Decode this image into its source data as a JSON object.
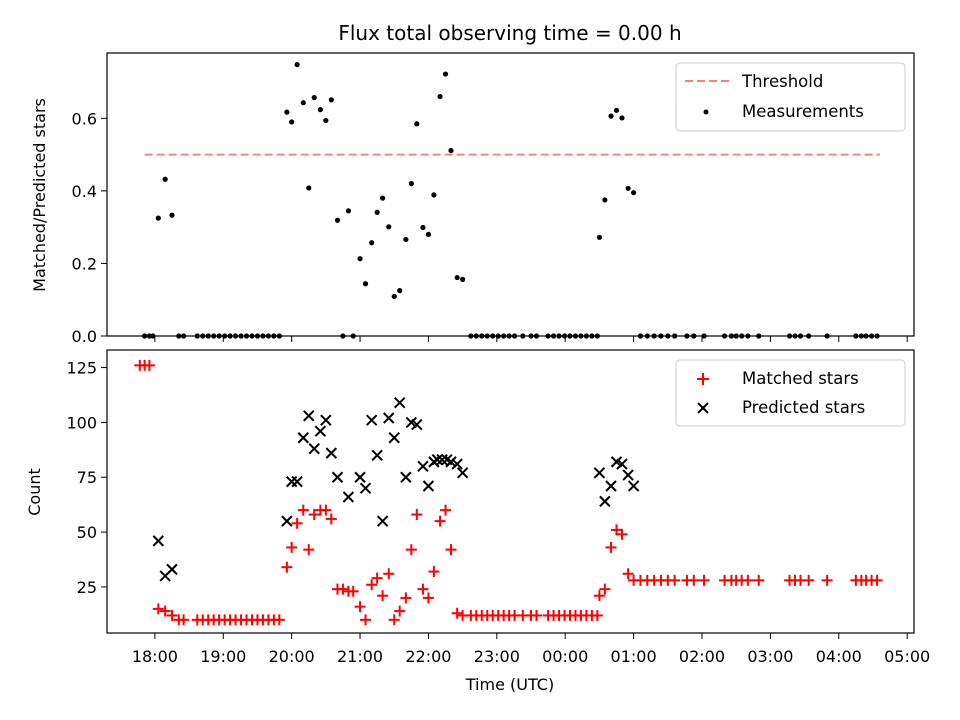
{
  "title": "Flux total observing time = 0.00 h",
  "xlabel": "Time (UTC)",
  "time_tick_labels": [
    "18:00",
    "19:00",
    "20:00",
    "21:00",
    "22:00",
    "23:00",
    "00:00",
    "01:00",
    "02:00",
    "03:00",
    "04:00",
    "05:00"
  ],
  "colors": {
    "threshold": "#ff7f7f",
    "measurements": "#000000",
    "matched": "#ff0000",
    "predicted": "#000000"
  },
  "chart_data": [
    {
      "type": "scatter",
      "ylabel": "Matched/Predicted stars",
      "ylim": [
        0,
        0.78
      ],
      "yticks": [
        0.0,
        0.2,
        0.4,
        0.6
      ],
      "ytick_labels": [
        "0.0",
        "0.2",
        "0.4",
        "0.6"
      ],
      "xlim_hours": [
        17.3,
        29.1
      ],
      "legend_position": "top-right",
      "threshold": {
        "name": "Threshold",
        "value": 0.5,
        "x_range": [
          17.85,
          28.6
        ]
      },
      "series": [
        {
          "name": "Measurements",
          "points": [
            [
              17.85,
              0
            ],
            [
              17.92,
              0
            ],
            [
              17.97,
              0
            ],
            [
              18.05,
              0.325
            ],
            [
              18.15,
              0.432
            ],
            [
              18.25,
              0.333
            ],
            [
              18.35,
              0
            ],
            [
              18.42,
              0
            ],
            [
              18.62,
              0
            ],
            [
              18.7,
              0
            ],
            [
              18.78,
              0
            ],
            [
              18.86,
              0
            ],
            [
              18.94,
              0
            ],
            [
              19.02,
              0
            ],
            [
              19.1,
              0
            ],
            [
              19.18,
              0
            ],
            [
              19.26,
              0
            ],
            [
              19.34,
              0
            ],
            [
              19.42,
              0
            ],
            [
              19.5,
              0
            ],
            [
              19.58,
              0
            ],
            [
              19.66,
              0
            ],
            [
              19.74,
              0
            ],
            [
              19.82,
              0
            ],
            [
              19.93,
              0.617
            ],
            [
              20.0,
              0.59
            ],
            [
              20.08,
              0.748
            ],
            [
              20.17,
              0.643
            ],
            [
              20.25,
              0.408
            ],
            [
              20.33,
              0.657
            ],
            [
              20.42,
              0.624
            ],
            [
              20.5,
              0.594
            ],
            [
              20.58,
              0.651
            ],
            [
              20.67,
              0.319
            ],
            [
              20.75,
              0
            ],
            [
              20.83,
              0.345
            ],
            [
              20.9,
              0
            ],
            [
              21.0,
              0.213
            ],
            [
              21.08,
              0.144
            ],
            [
              21.17,
              0.257
            ],
            [
              21.25,
              0.341
            ],
            [
              21.33,
              0.38
            ],
            [
              21.42,
              0.301
            ],
            [
              21.5,
              0.109
            ],
            [
              21.58,
              0.125
            ],
            [
              21.67,
              0.266
            ],
            [
              21.75,
              0.42
            ],
            [
              21.83,
              0.585
            ],
            [
              21.92,
              0.299
            ],
            [
              22.0,
              0.28
            ],
            [
              22.08,
              0.389
            ],
            [
              22.17,
              0.66
            ],
            [
              22.25,
              0.722
            ],
            [
              22.33,
              0.511
            ],
            [
              22.42,
              0.161
            ],
            [
              22.5,
              0.156
            ],
            [
              22.62,
              0
            ],
            [
              22.7,
              0
            ],
            [
              22.78,
              0
            ],
            [
              22.86,
              0
            ],
            [
              22.94,
              0
            ],
            [
              23.02,
              0
            ],
            [
              23.1,
              0
            ],
            [
              23.18,
              0
            ],
            [
              23.26,
              0
            ],
            [
              23.38,
              0
            ],
            [
              23.5,
              0
            ],
            [
              23.58,
              0
            ],
            [
              23.75,
              0
            ],
            [
              23.83,
              0
            ],
            [
              23.91,
              0
            ],
            [
              23.99,
              0
            ],
            [
              24.07,
              0
            ],
            [
              24.15,
              0
            ],
            [
              24.23,
              0
            ],
            [
              24.31,
              0
            ],
            [
              24.39,
              0
            ],
            [
              24.47,
              0
            ],
            [
              24.5,
              0.272
            ],
            [
              24.58,
              0.375
            ],
            [
              24.67,
              0.606
            ],
            [
              24.75,
              0.622
            ],
            [
              24.83,
              0.601
            ],
            [
              24.92,
              0.407
            ],
            [
              25.0,
              0.395
            ],
            [
              25.1,
              0
            ],
            [
              25.2,
              0
            ],
            [
              25.3,
              0
            ],
            [
              25.4,
              0
            ],
            [
              25.5,
              0
            ],
            [
              25.6,
              0
            ],
            [
              25.78,
              0
            ],
            [
              25.88,
              0
            ],
            [
              26.03,
              0
            ],
            [
              26.33,
              0
            ],
            [
              26.43,
              0
            ],
            [
              26.5,
              0
            ],
            [
              26.58,
              0
            ],
            [
              26.67,
              0
            ],
            [
              26.83,
              0
            ],
            [
              27.28,
              0
            ],
            [
              27.36,
              0
            ],
            [
              27.44,
              0
            ],
            [
              27.56,
              0
            ],
            [
              27.83,
              0
            ],
            [
              28.25,
              0
            ],
            [
              28.33,
              0
            ],
            [
              28.4,
              0
            ],
            [
              28.48,
              0
            ],
            [
              28.56,
              0
            ]
          ]
        }
      ]
    },
    {
      "type": "scatter",
      "ylabel": "Count",
      "ylim": [
        4,
        133
      ],
      "yticks": [
        25,
        50,
        75,
        100,
        125
      ],
      "ytick_labels": [
        "25",
        "50",
        "75",
        "100",
        "125"
      ],
      "xlim_hours": [
        17.3,
        29.1
      ],
      "legend_position": "top-right",
      "series": [
        {
          "name": "Matched stars",
          "points": [
            [
              17.78,
              126
            ],
            [
              17.85,
              126
            ],
            [
              17.92,
              126
            ],
            [
              18.05,
              15
            ],
            [
              18.15,
              14
            ],
            [
              18.25,
              12
            ],
            [
              18.35,
              10
            ],
            [
              18.42,
              10
            ],
            [
              18.62,
              10
            ],
            [
              18.7,
              10
            ],
            [
              18.78,
              10
            ],
            [
              18.86,
              10
            ],
            [
              18.94,
              10
            ],
            [
              19.02,
              10
            ],
            [
              19.1,
              10
            ],
            [
              19.18,
              10
            ],
            [
              19.26,
              10
            ],
            [
              19.34,
              10
            ],
            [
              19.42,
              10
            ],
            [
              19.5,
              10
            ],
            [
              19.58,
              10
            ],
            [
              19.66,
              10
            ],
            [
              19.74,
              10
            ],
            [
              19.82,
              10
            ],
            [
              19.93,
              34
            ],
            [
              20.0,
              43
            ],
            [
              20.08,
              54
            ],
            [
              20.17,
              60
            ],
            [
              20.25,
              42
            ],
            [
              20.33,
              58
            ],
            [
              20.42,
              60
            ],
            [
              20.5,
              60
            ],
            [
              20.58,
              56
            ],
            [
              20.67,
              24
            ],
            [
              20.75,
              24
            ],
            [
              20.83,
              23
            ],
            [
              20.9,
              23
            ],
            [
              21.0,
              16
            ],
            [
              21.08,
              10
            ],
            [
              21.17,
              26
            ],
            [
              21.25,
              29
            ],
            [
              21.33,
              21
            ],
            [
              21.42,
              31
            ],
            [
              21.5,
              10
            ],
            [
              21.58,
              14
            ],
            [
              21.67,
              20
            ],
            [
              21.75,
              42
            ],
            [
              21.83,
              58
            ],
            [
              21.92,
              24
            ],
            [
              22.0,
              20
            ],
            [
              22.08,
              32
            ],
            [
              22.17,
              55
            ],
            [
              22.25,
              60
            ],
            [
              22.33,
              42
            ],
            [
              22.42,
              13
            ],
            [
              22.5,
              12
            ],
            [
              22.62,
              12
            ],
            [
              22.7,
              12
            ],
            [
              22.78,
              12
            ],
            [
              22.86,
              12
            ],
            [
              22.94,
              12
            ],
            [
              23.02,
              12
            ],
            [
              23.1,
              12
            ],
            [
              23.18,
              12
            ],
            [
              23.26,
              12
            ],
            [
              23.38,
              12
            ],
            [
              23.5,
              12
            ],
            [
              23.58,
              12
            ],
            [
              23.75,
              12
            ],
            [
              23.83,
              12
            ],
            [
              23.91,
              12
            ],
            [
              23.99,
              12
            ],
            [
              24.07,
              12
            ],
            [
              24.15,
              12
            ],
            [
              24.23,
              12
            ],
            [
              24.31,
              12
            ],
            [
              24.39,
              12
            ],
            [
              24.47,
              12
            ],
            [
              24.5,
              21
            ],
            [
              24.58,
              24
            ],
            [
              24.67,
              43
            ],
            [
              24.75,
              51
            ],
            [
              24.83,
              49
            ],
            [
              24.92,
              31
            ],
            [
              25.0,
              28
            ],
            [
              25.1,
              28
            ],
            [
              25.2,
              28
            ],
            [
              25.3,
              28
            ],
            [
              25.4,
              28
            ],
            [
              25.5,
              28
            ],
            [
              25.6,
              28
            ],
            [
              25.78,
              28
            ],
            [
              25.88,
              28
            ],
            [
              26.03,
              28
            ],
            [
              26.33,
              28
            ],
            [
              26.43,
              28
            ],
            [
              26.5,
              28
            ],
            [
              26.58,
              28
            ],
            [
              26.67,
              28
            ],
            [
              26.83,
              28
            ],
            [
              27.28,
              28
            ],
            [
              27.36,
              28
            ],
            [
              27.44,
              28
            ],
            [
              27.56,
              28
            ],
            [
              27.83,
              28
            ],
            [
              28.25,
              28
            ],
            [
              28.33,
              28
            ],
            [
              28.4,
              28
            ],
            [
              28.48,
              28
            ],
            [
              28.56,
              28
            ]
          ]
        },
        {
          "name": "Predicted stars",
          "points": [
            [
              18.05,
              46
            ],
            [
              18.15,
              30
            ],
            [
              18.25,
              33
            ],
            [
              19.93,
              55
            ],
            [
              20.0,
              73
            ],
            [
              20.08,
              73
            ],
            [
              20.17,
              93
            ],
            [
              20.25,
              103
            ],
            [
              20.33,
              88
            ],
            [
              20.42,
              96
            ],
            [
              20.5,
              101
            ],
            [
              20.58,
              86
            ],
            [
              20.67,
              75
            ],
            [
              20.83,
              66
            ],
            [
              21.0,
              75
            ],
            [
              21.08,
              70
            ],
            [
              21.17,
              101
            ],
            [
              21.25,
              85
            ],
            [
              21.33,
              55
            ],
            [
              21.42,
              102
            ],
            [
              21.5,
              93
            ],
            [
              21.58,
              109
            ],
            [
              21.67,
              75
            ],
            [
              21.75,
              100
            ],
            [
              21.83,
              99
            ],
            [
              21.92,
              80
            ],
            [
              22.0,
              71
            ],
            [
              22.08,
              82
            ],
            [
              22.13,
              83
            ],
            [
              22.2,
              83
            ],
            [
              22.27,
              83
            ],
            [
              22.33,
              82
            ],
            [
              22.42,
              81
            ],
            [
              22.5,
              77
            ],
            [
              24.5,
              77
            ],
            [
              24.58,
              64
            ],
            [
              24.67,
              71
            ],
            [
              24.75,
              82
            ],
            [
              24.83,
              81
            ],
            [
              24.92,
              76
            ],
            [
              25.0,
              71
            ]
          ]
        }
      ]
    }
  ]
}
